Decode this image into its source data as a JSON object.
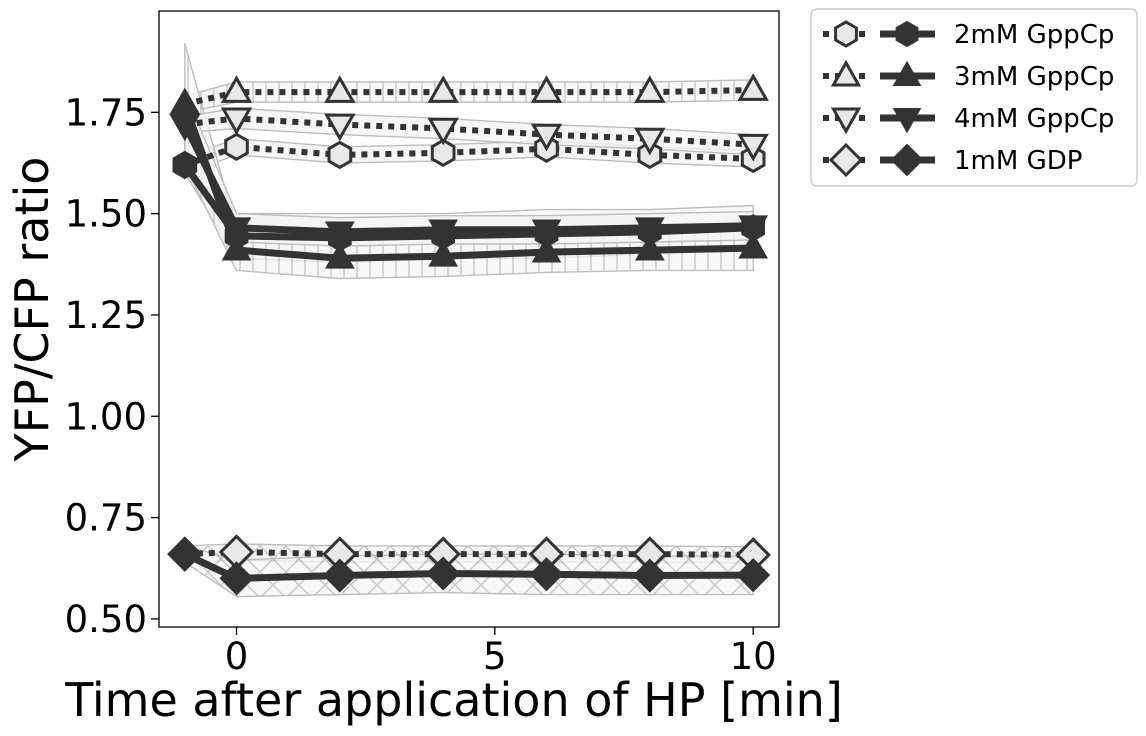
{
  "chart_data": {
    "type": "line",
    "title": "",
    "xlabel": "Time after application of HP [min]",
    "ylabel": "YFP/CFP ratio",
    "xlim": [
      -1.5,
      10.5
    ],
    "ylim": [
      0.48,
      2.0
    ],
    "xticks": [
      0,
      5,
      10
    ],
    "xtick_labels": [
      "0",
      "5",
      "10"
    ],
    "yticks": [
      0.5,
      0.75,
      1.0,
      1.25,
      1.5,
      1.75
    ],
    "ytick_labels": [
      "0.50",
      "0.75",
      "1.00",
      "1.25",
      "1.50",
      "1.75"
    ],
    "grid": false,
    "legend_position": "outside-top-right",
    "x": [
      -1,
      0,
      2,
      4,
      6,
      8,
      10
    ],
    "series": [
      {
        "name": "2mM GppCp",
        "marker": "hexagon",
        "style": "dotted",
        "fill": "open",
        "values": [
          1.62,
          1.665,
          1.645,
          1.65,
          1.66,
          1.645,
          1.635
        ],
        "band": [
          [
            1.6,
            1.64
          ],
          [
            1.645,
            1.685
          ],
          [
            1.625,
            1.665
          ],
          [
            1.63,
            1.67
          ],
          [
            1.64,
            1.68
          ],
          [
            1.625,
            1.665
          ],
          [
            1.615,
            1.655
          ]
        ],
        "hatch": "none"
      },
      {
        "name": "2mM GppCp",
        "marker": "hexagon",
        "style": "solid",
        "fill": "filled",
        "values": [
          1.62,
          1.445,
          1.44,
          1.445,
          1.45,
          1.455,
          1.465
        ],
        "band": [
          [
            1.6,
            1.64
          ],
          [
            1.39,
            1.5
          ],
          [
            1.38,
            1.5
          ],
          [
            1.39,
            1.5
          ],
          [
            1.39,
            1.51
          ],
          [
            1.4,
            1.51
          ],
          [
            1.41,
            1.52
          ]
        ],
        "hatch": "none"
      },
      {
        "name": "3mM GppCp",
        "marker": "triangle-up",
        "style": "dotted",
        "fill": "open",
        "values": [
          1.77,
          1.8,
          1.8,
          1.8,
          1.8,
          1.8,
          1.805
        ],
        "band": [
          [
            1.75,
            1.79
          ],
          [
            1.775,
            1.825
          ],
          [
            1.775,
            1.825
          ],
          [
            1.775,
            1.825
          ],
          [
            1.775,
            1.825
          ],
          [
            1.775,
            1.825
          ],
          [
            1.78,
            1.83
          ]
        ],
        "hatch": "vertical"
      },
      {
        "name": "3mM GppCp",
        "marker": "triangle-up",
        "style": "solid",
        "fill": "filled",
        "values": [
          1.77,
          1.41,
          1.39,
          1.395,
          1.405,
          1.41,
          1.415
        ],
        "band": [
          [
            1.62,
            1.92
          ],
          [
            1.36,
            1.46
          ],
          [
            1.34,
            1.44
          ],
          [
            1.345,
            1.445
          ],
          [
            1.355,
            1.455
          ],
          [
            1.36,
            1.46
          ],
          [
            1.36,
            1.47
          ]
        ],
        "hatch": "vertical"
      },
      {
        "name": "4mM GppCp",
        "marker": "triangle-down",
        "style": "dotted",
        "fill": "open",
        "values": [
          1.72,
          1.735,
          1.72,
          1.71,
          1.695,
          1.685,
          1.67
        ],
        "band": [
          [
            1.7,
            1.74
          ],
          [
            1.71,
            1.76
          ],
          [
            1.695,
            1.745
          ],
          [
            1.685,
            1.735
          ],
          [
            1.67,
            1.72
          ],
          [
            1.66,
            1.71
          ],
          [
            1.645,
            1.695
          ]
        ],
        "hatch": "none"
      },
      {
        "name": "4mM GppCp",
        "marker": "triangle-down",
        "style": "solid",
        "fill": "filled",
        "values": [
          1.72,
          1.465,
          1.455,
          1.46,
          1.46,
          1.465,
          1.47
        ],
        "band": [
          [
            1.64,
            1.8
          ],
          [
            1.43,
            1.5
          ],
          [
            1.42,
            1.49
          ],
          [
            1.425,
            1.495
          ],
          [
            1.425,
            1.495
          ],
          [
            1.43,
            1.5
          ],
          [
            1.435,
            1.505
          ]
        ],
        "hatch": "none"
      },
      {
        "name": "1mM GDP",
        "marker": "diamond",
        "style": "dotted",
        "fill": "open",
        "values": [
          0.66,
          0.665,
          0.66,
          0.66,
          0.66,
          0.66,
          0.658
        ],
        "band": [
          [
            0.64,
            0.68
          ],
          [
            0.645,
            0.685
          ],
          [
            0.64,
            0.68
          ],
          [
            0.64,
            0.68
          ],
          [
            0.64,
            0.68
          ],
          [
            0.64,
            0.68
          ],
          [
            0.638,
            0.678
          ]
        ],
        "hatch": "cross"
      },
      {
        "name": "1mM GDP",
        "marker": "diamond",
        "style": "solid",
        "fill": "filled",
        "values": [
          0.66,
          0.6,
          0.607,
          0.612,
          0.61,
          0.607,
          0.608
        ],
        "band": [
          [
            0.64,
            0.68
          ],
          [
            0.555,
            0.645
          ],
          [
            0.56,
            0.655
          ],
          [
            0.565,
            0.66
          ],
          [
            0.56,
            0.66
          ],
          [
            0.56,
            0.655
          ],
          [
            0.56,
            0.655
          ]
        ],
        "hatch": "cross"
      }
    ],
    "legend": [
      {
        "label": "2mM GppCp",
        "marker": "hexagon"
      },
      {
        "label": "3mM GppCp",
        "marker": "triangle-up"
      },
      {
        "label": "4mM GppCp",
        "marker": "triangle-down"
      },
      {
        "label": "1mM GDP",
        "marker": "diamond"
      }
    ],
    "colors": {
      "line": "#333333",
      "marker_open_fill": "#e8e8e8",
      "band_fill": "#f4f4f4",
      "band_edge": "#bdbdbd",
      "axes": "#000000"
    }
  }
}
